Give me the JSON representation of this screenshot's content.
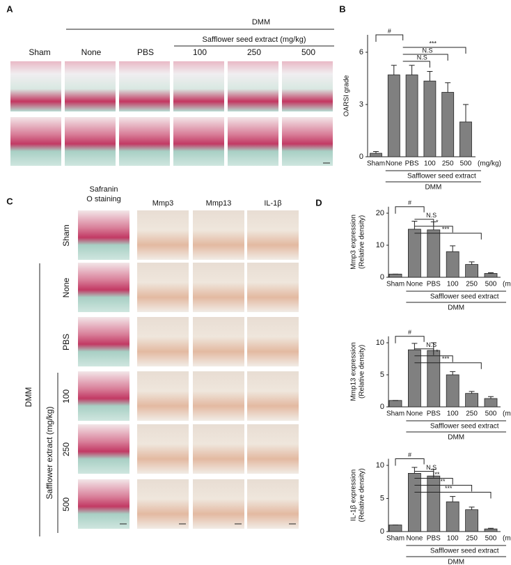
{
  "panel_a": {
    "label": "A",
    "group": "DMM",
    "subgroup": "Safflower seed  extract (mg/kg)",
    "columns": [
      "Sham",
      "None",
      "PBS",
      "100",
      "250",
      "500"
    ]
  },
  "panel_b": {
    "label": "B"
  },
  "panel_c": {
    "label": "C",
    "columns": [
      [
        "Safranin",
        "O staining"
      ],
      [
        "Mmp3"
      ],
      [
        "Mmp13"
      ],
      [
        "IL-1β"
      ]
    ],
    "rows": [
      "Sham",
      "None",
      "PBS",
      "100",
      "250",
      "500"
    ],
    "group": "DMM",
    "subgroup": "Safflower  extract (mg/kg)"
  },
  "panel_d": {
    "label": "D"
  },
  "chart_data": [
    {
      "type": "bar",
      "ylabel": [
        "OARSI grade"
      ],
      "categories": [
        "Sham",
        "None",
        "PBS",
        "100",
        "250",
        "500"
      ],
      "unit": "(mg/kg)",
      "group_labels": [
        "Safflower seed extract",
        "DMM"
      ],
      "values": [
        0.2,
        4.7,
        4.7,
        4.35,
        3.7,
        2.0
      ],
      "errors": [
        0.1,
        0.55,
        0.55,
        0.55,
        0.55,
        1.0
      ],
      "color": "#808080",
      "ylim": [
        0,
        7
      ],
      "yticks": [
        0,
        3,
        6
      ],
      "significance": [
        "#",
        "***",
        "N.S",
        "N.S"
      ]
    },
    {
      "type": "bar",
      "ylabel": [
        "Mmp3 expression",
        "(Relative density)"
      ],
      "categories": [
        "Sham",
        "None",
        "PBS",
        "100",
        "250",
        "500"
      ],
      "unit": "(mg/kg)",
      "group_labels": [
        "Safflower seed extract",
        "DMM"
      ],
      "values": [
        1,
        15,
        14.8,
        8,
        4,
        1.2
      ],
      "errors": [
        0,
        2.5,
        2.5,
        1.8,
        0.8,
        0.2
      ],
      "color": "#808080",
      "ylim": [
        0,
        22
      ],
      "yticks": [
        0,
        10,
        20
      ],
      "significance": [
        "#",
        "N.S",
        "*",
        "***"
      ]
    },
    {
      "type": "bar",
      "ylabel": [
        "Mmp13 expression",
        "(Relative density)"
      ],
      "categories": [
        "Sham",
        "None",
        "PBS",
        "100",
        "250",
        "500"
      ],
      "unit": "(mg/kg)",
      "group_labels": [
        "Safflower seed extract",
        "DMM"
      ],
      "values": [
        1,
        8.9,
        8.8,
        5,
        2.1,
        1.3
      ],
      "errors": [
        0,
        1.0,
        1.2,
        0.5,
        0.3,
        0.3
      ],
      "color": "#808080",
      "ylim": [
        0,
        11
      ],
      "yticks": [
        0,
        5,
        10
      ],
      "significance": [
        "#",
        "N.S",
        "*",
        "***"
      ]
    },
    {
      "type": "bar",
      "ylabel": [
        "IL-1β expression",
        "(Relative density)"
      ],
      "categories": [
        "Sham",
        "None",
        "PBS",
        "100",
        "250",
        "500"
      ],
      "unit": "(mg/kg)",
      "group_labels": [
        "Safflower seed extract",
        "DMM"
      ],
      "values": [
        1,
        8.8,
        8.4,
        4.5,
        3.3,
        0.4
      ],
      "errors": [
        0,
        0.9,
        1.0,
        0.8,
        0.4,
        0.1
      ],
      "color": "#808080",
      "ylim": [
        0,
        11
      ],
      "yticks": [
        0,
        5,
        10
      ],
      "significance": [
        "#",
        "N.S",
        "**",
        "**",
        "***"
      ]
    }
  ]
}
